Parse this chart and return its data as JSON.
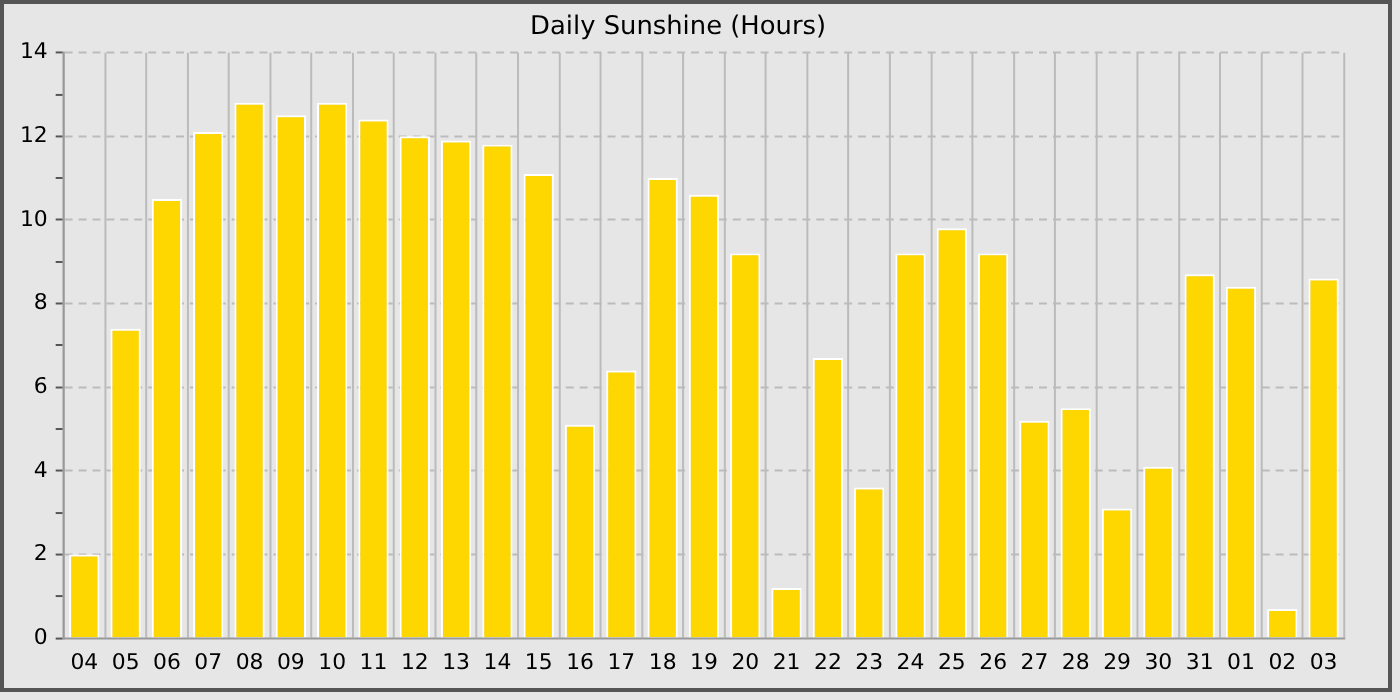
{
  "chart_data": {
    "type": "bar",
    "title": "Daily Sunshine (Hours)",
    "categories": [
      "04",
      "05",
      "06",
      "07",
      "08",
      "09",
      "10",
      "11",
      "12",
      "13",
      "14",
      "15",
      "16",
      "17",
      "18",
      "19",
      "20",
      "21",
      "22",
      "23",
      "24",
      "25",
      "26",
      "27",
      "28",
      "29",
      "30",
      "31",
      "01",
      "02",
      "03"
    ],
    "values": [
      2.0,
      7.4,
      10.5,
      12.1,
      12.8,
      12.5,
      12.8,
      12.4,
      12.0,
      11.9,
      11.8,
      11.1,
      5.1,
      6.4,
      11.0,
      10.6,
      9.2,
      1.2,
      6.7,
      3.6,
      9.2,
      9.8,
      9.2,
      5.2,
      5.5,
      3.1,
      4.1,
      8.7,
      8.4,
      0.7,
      8.6
    ],
    "color": "#ffd700",
    "ylim": [
      0,
      14
    ],
    "yticks": [
      0,
      {
        "value": 1,
        "label": null
      },
      2,
      {
        "value": 3,
        "label": null
      },
      4,
      {
        "value": 5,
        "label": null
      },
      6,
      {
        "value": 7,
        "label": null
      },
      8,
      {
        "value": 9,
        "label": null
      },
      10,
      {
        "value": 11,
        "label": null
      },
      12,
      {
        "value": 13,
        "label": null
      },
      14
    ],
    "grid": true,
    "legend": false
  }
}
